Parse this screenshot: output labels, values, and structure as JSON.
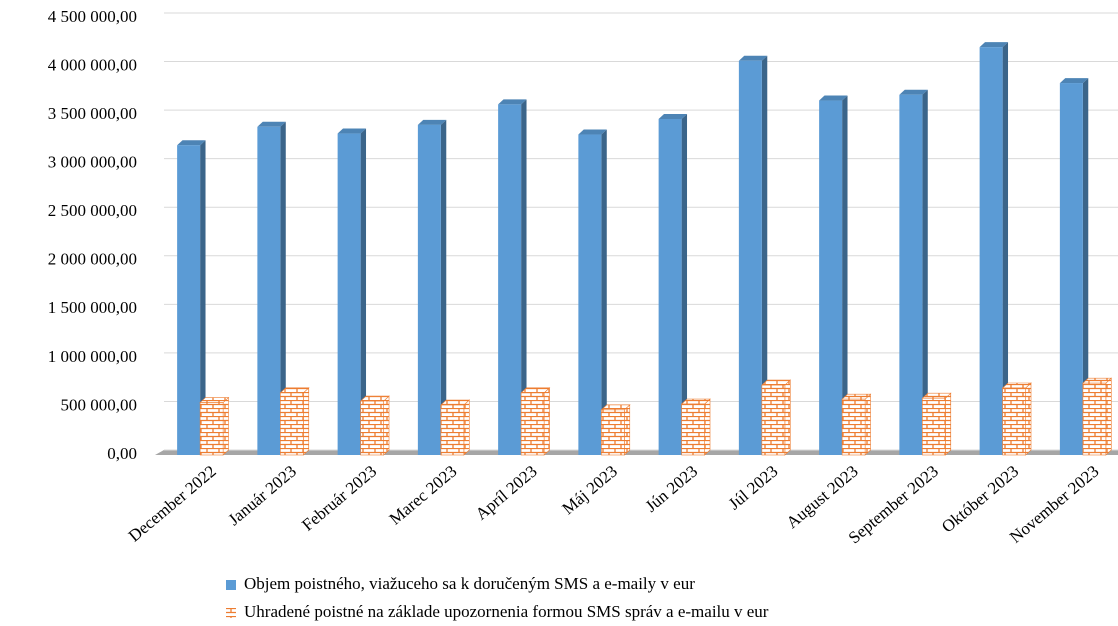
{
  "chart_data": {
    "type": "bar3d",
    "categories": [
      "December 2022",
      "Január 2023",
      "Február 2023",
      "Marec 2023",
      "Apríl 2023",
      "Máj 2023",
      "Jún 2023",
      "Júl 2023",
      "August 2023",
      "September 2023",
      "Október 2023",
      "November 2023"
    ],
    "series": [
      {
        "name": "Objem poistného, viažuceho sa k doručeným SMS a e-maily v eur",
        "color": "#5b9bd5",
        "values": [
          3190000,
          3380000,
          3310000,
          3400000,
          3610000,
          3300000,
          3460000,
          4060000,
          3650000,
          3710000,
          4200000,
          3830000
        ]
      },
      {
        "name": "Uhradené poistné na základe upozornenia formou SMS správ a e-mailu v eur",
        "color": "#ed7d31",
        "values": [
          540000,
          640000,
          555000,
          515000,
          640000,
          465000,
          525000,
          720000,
          575000,
          585000,
          690000,
          740000
        ]
      }
    ],
    "ylim": [
      0,
      4500000
    ],
    "yticks": [
      {
        "value": 0,
        "label": "0,00"
      },
      {
        "value": 500000,
        "label": "500 000,00"
      },
      {
        "value": 1000000,
        "label": "1 000 000,00"
      },
      {
        "value": 1500000,
        "label": "1 500 000,00"
      },
      {
        "value": 2000000,
        "label": "2 000 000,00"
      },
      {
        "value": 2500000,
        "label": "2 500 000,00"
      },
      {
        "value": 3000000,
        "label": "3 000 000,00"
      },
      {
        "value": 3500000,
        "label": "3 500 000,00"
      },
      {
        "value": 4000000,
        "label": "4 000 000,00"
      },
      {
        "value": 4500000,
        "label": "4 500 000,00"
      }
    ],
    "grid": true
  }
}
